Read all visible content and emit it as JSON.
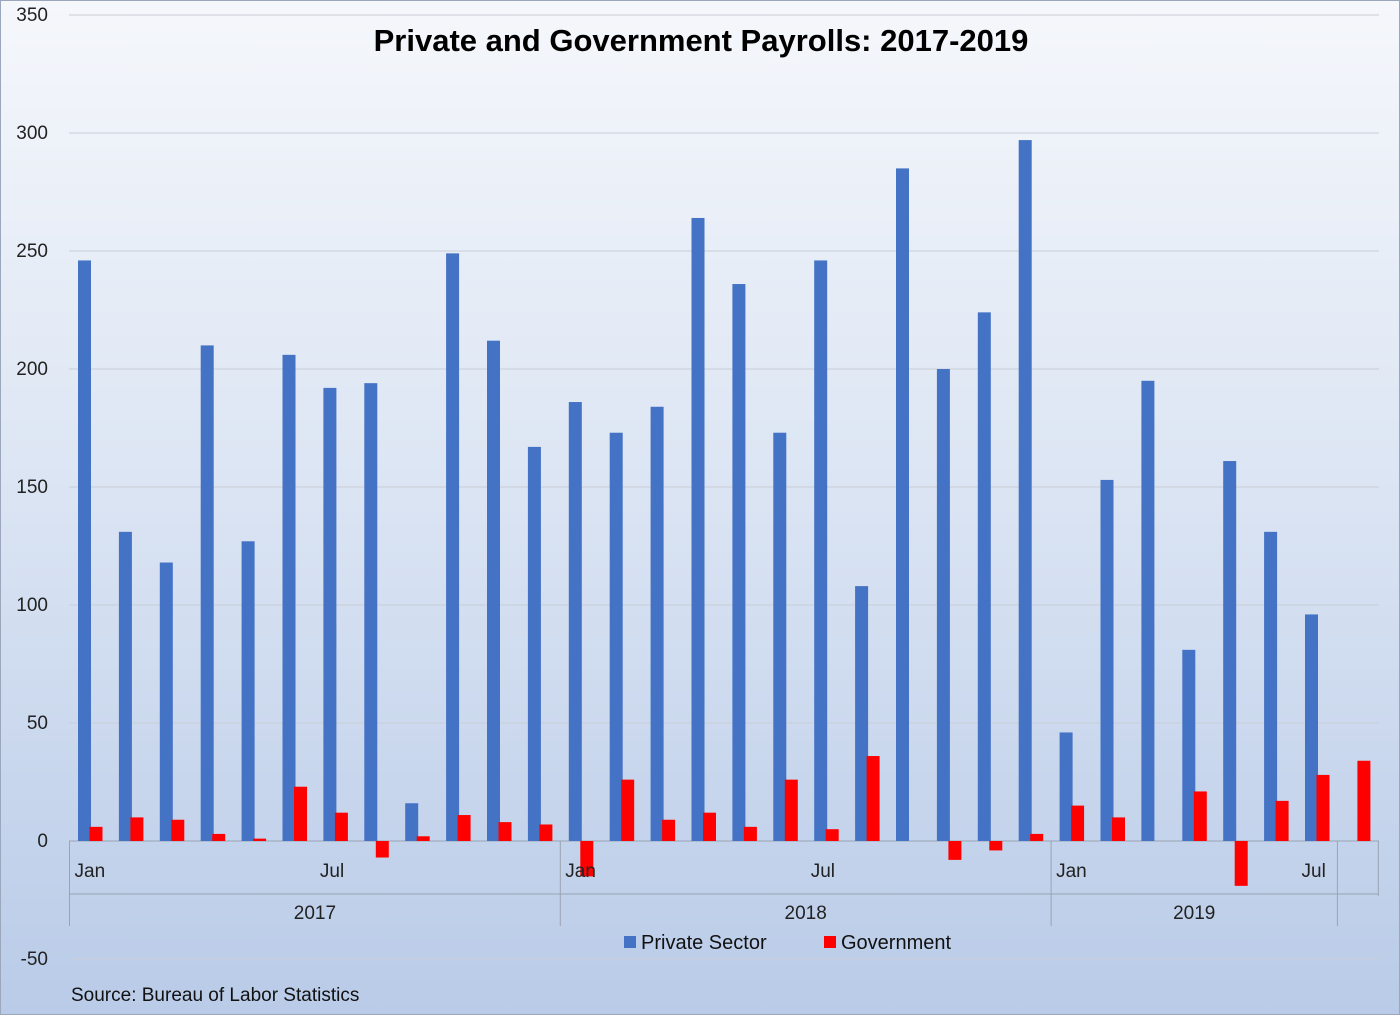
{
  "chart_data": {
    "type": "bar",
    "title": "Private and Government Payrolls:  2017-2019",
    "source": "Source: Bureau of Labor Statistics",
    "ylim": [
      -50,
      350
    ],
    "yticks": [
      -50,
      0,
      50,
      100,
      150,
      200,
      250,
      300,
      350
    ],
    "grid": true,
    "legend_position": "bottom-center",
    "categories": [
      "Jan 2017",
      "Feb 2017",
      "Mar 2017",
      "Apr 2017",
      "May 2017",
      "Jun 2017",
      "Jul 2017",
      "Aug 2017",
      "Sep 2017",
      "Oct 2017",
      "Nov 2017",
      "Dec 2017",
      "Jan 2018",
      "Feb 2018",
      "Mar 2018",
      "Apr 2018",
      "May 2018",
      "Jun 2018",
      "Jul 2018",
      "Aug 2018",
      "Sep 2018",
      "Oct 2018",
      "Nov 2018",
      "Dec 2018",
      "Jan 2019",
      "Feb 2019",
      "Mar 2019",
      "Apr 2019",
      "May 2019",
      "Jun 2019",
      "Jul 2019",
      "Aug 2019"
    ],
    "month_labels": [
      {
        "index": 0,
        "text": "Jan"
      },
      {
        "index": 6,
        "text": "Jul"
      },
      {
        "index": 12,
        "text": "Jan"
      },
      {
        "index": 18,
        "text": "Jul"
      },
      {
        "index": 24,
        "text": "Jan"
      },
      {
        "index": 30,
        "text": "Jul"
      }
    ],
    "year_groups": [
      {
        "label": "2017",
        "start": 0,
        "end": 12
      },
      {
        "label": "2018",
        "start": 12,
        "end": 24
      },
      {
        "label": "2019",
        "start": 24,
        "end": 31
      }
    ],
    "series": [
      {
        "name": "Private Sector",
        "color": "#4472c4",
        "values": [
          246,
          131,
          118,
          210,
          127,
          206,
          192,
          194,
          16,
          249,
          212,
          167,
          186,
          173,
          184,
          264,
          236,
          173,
          246,
          108,
          285,
          200,
          224,
          297,
          46,
          153,
          195,
          81,
          161,
          131,
          96,
          null
        ]
      },
      {
        "name": "Government",
        "color": "#ff0000",
        "values": [
          6,
          10,
          9,
          3,
          1,
          23,
          12,
          -7,
          2,
          11,
          8,
          7,
          -15,
          26,
          9,
          12,
          6,
          26,
          5,
          36,
          null,
          -8,
          -4,
          3,
          15,
          10,
          null,
          21,
          -19,
          17,
          28,
          34
        ]
      }
    ]
  }
}
